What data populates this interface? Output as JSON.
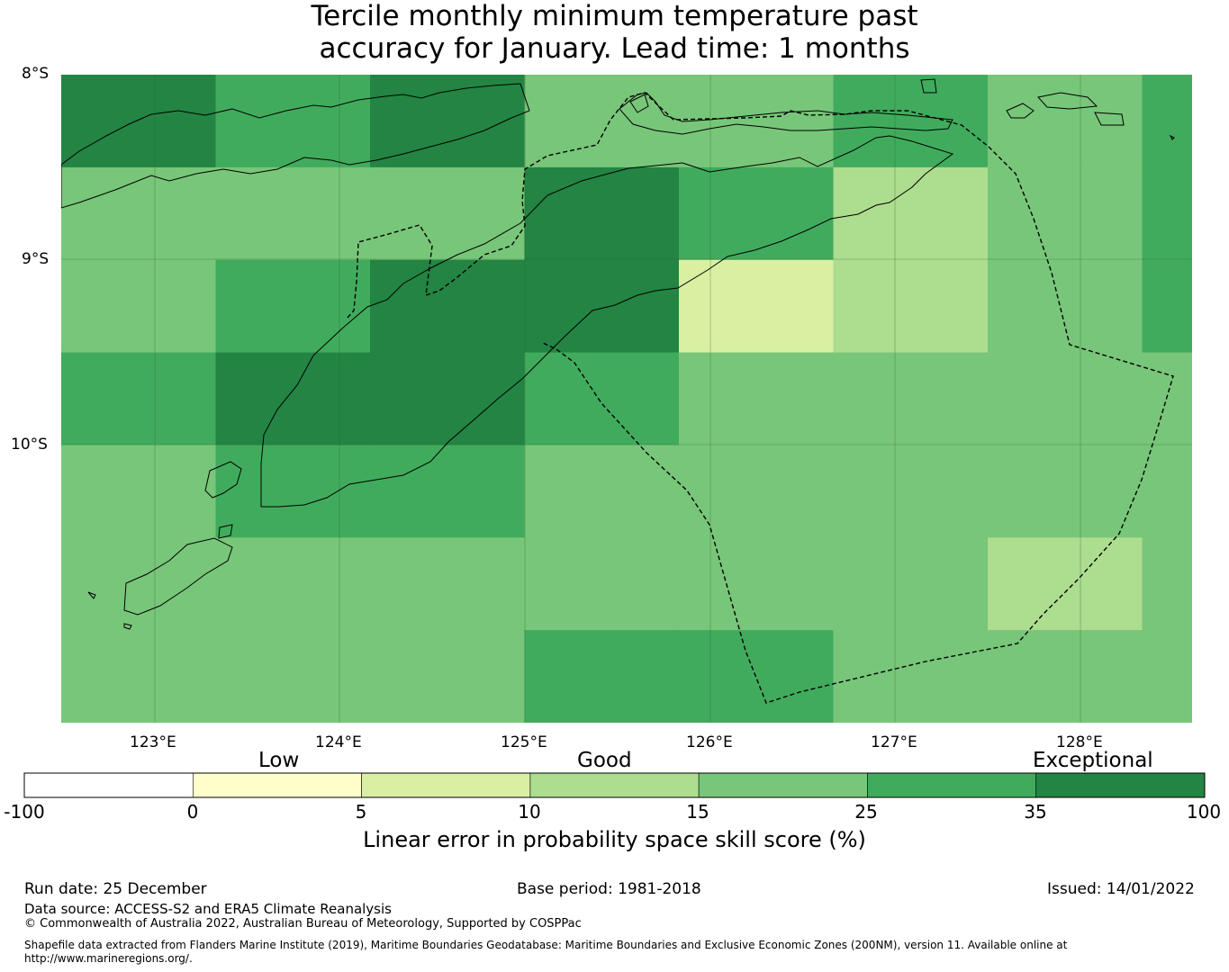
{
  "title": {
    "line1": "Tercile monthly minimum temperature past",
    "line2": "accuracy for January. Lead time: 1 months"
  },
  "map": {
    "lat_labels": [
      "8°S",
      "9°S",
      "10°S"
    ],
    "lon_labels": [
      "123°E",
      "124°E",
      "125°E",
      "126°E",
      "127°E",
      "128°E"
    ],
    "lon_range": [
      122.5,
      128.65
    ],
    "lat_range": [
      -8.0,
      -11.5
    ],
    "grid_cells": [
      {
        "row": 0,
        "values": [
          35,
          25,
          35,
          15,
          15,
          25,
          15,
          25
        ]
      },
      {
        "row": 1,
        "values": [
          15,
          15,
          15,
          35,
          25,
          10,
          15,
          25
        ]
      },
      {
        "row": 2,
        "values": [
          15,
          25,
          35,
          35,
          5,
          10,
          15,
          25
        ]
      },
      {
        "row": 3,
        "values": [
          25,
          35,
          35,
          25,
          15,
          15,
          15,
          15
        ]
      },
      {
        "row": 4,
        "values": [
          15,
          25,
          25,
          15,
          15,
          15,
          15,
          15
        ]
      },
      {
        "row": 5,
        "values": [
          15,
          15,
          15,
          15,
          15,
          15,
          10,
          15
        ]
      },
      {
        "row": 6,
        "values": [
          15,
          15,
          15,
          25,
          25,
          15,
          15,
          15
        ]
      }
    ]
  },
  "colorbar": {
    "categories": [
      "Low",
      "Good",
      "Exceptional"
    ],
    "ticks": [
      "-100",
      "0",
      "5",
      "10",
      "15",
      "25",
      "35",
      "100"
    ],
    "colors": [
      "#ffffff",
      "#ffffcc",
      "#d9f0a3",
      "#addd8e",
      "#78c679",
      "#41ab5d",
      "#238443"
    ],
    "label": "Linear error in probability space skill score (%)"
  },
  "footer": {
    "run_date": "Run date: 25 December",
    "base_period": "Base period: 1981-2018",
    "issued": "Issued: 14/01/2022",
    "data_source": "Data source: ACCESS-S2 and ERA5 Climate Reanalysis",
    "copyright": "© Commonwealth of Australia 2022, Australian Bureau of Meteorology, Supported by COSPPac",
    "shapefile_line1": "Shapefile data extracted from Flanders Marine Institute (2019), Maritime Boundaries Geodatabase: Maritime Boundaries and Exclusive Economic Zones (200NM), version 11. Available online at",
    "shapefile_line2": "http://www.marineregions.org/."
  }
}
